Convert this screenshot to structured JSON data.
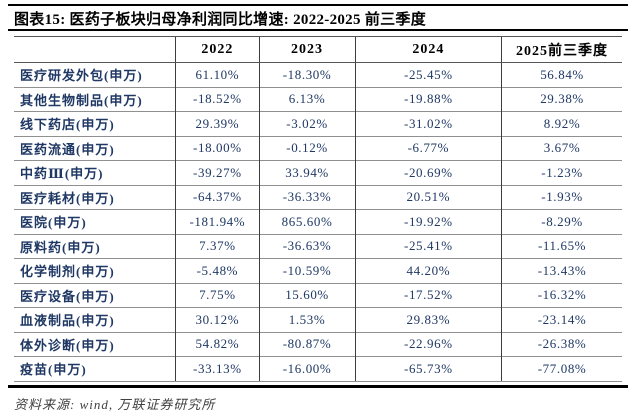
{
  "title": "图表15:  医药子板块归母净利润同比增速:  2022-2025 前三季度",
  "footer": "资料来源: wind, 万联证券研究所",
  "colors": {
    "text_navy": "#1F3864",
    "title_black": "#000000",
    "row_separator_gray": "#909090",
    "column_line_dark": "#3d3d3d",
    "rule_black": "#000000"
  },
  "table": {
    "columns": [
      "",
      "2022",
      "2023",
      "2024",
      "2025前三季度"
    ],
    "rows": [
      {
        "label": "医疗研发外包(申万)",
        "values": [
          "61.10%",
          "-18.30%",
          "-25.45%",
          "56.84%"
        ]
      },
      {
        "label": "其他生物制品(申万)",
        "values": [
          "-18.52%",
          "6.13%",
          "-19.88%",
          "29.38%"
        ]
      },
      {
        "label": "线下药店(申万)",
        "values": [
          "29.39%",
          "-3.02%",
          "-31.02%",
          "8.92%"
        ]
      },
      {
        "label": "医药流通(申万)",
        "values": [
          "-18.00%",
          "-0.12%",
          "-6.77%",
          "3.67%"
        ]
      },
      {
        "label": "中药Ⅲ(申万)",
        "values": [
          "-39.27%",
          "33.94%",
          "-20.69%",
          "-1.23%"
        ]
      },
      {
        "label": "医疗耗材(申万)",
        "values": [
          "-64.37%",
          "-36.33%",
          "20.51%",
          "-1.93%"
        ]
      },
      {
        "label": "医院(申万)",
        "values": [
          "-181.94%",
          "865.60%",
          "-19.92%",
          "-8.29%"
        ]
      },
      {
        "label": "原料药(申万)",
        "values": [
          "7.37%",
          "-36.63%",
          "-25.41%",
          "-11.65%"
        ]
      },
      {
        "label": "化学制剂(申万)",
        "values": [
          "-5.48%",
          "-10.59%",
          "44.20%",
          "-13.43%"
        ]
      },
      {
        "label": "医疗设备(申万)",
        "values": [
          "7.75%",
          "15.60%",
          "-17.52%",
          "-16.32%"
        ]
      },
      {
        "label": "血液制品(申万)",
        "values": [
          "30.12%",
          "1.53%",
          "29.83%",
          "-23.14%"
        ]
      },
      {
        "label": "体外诊断(申万)",
        "values": [
          "54.82%",
          "-80.87%",
          "-22.96%",
          "-26.38%"
        ]
      },
      {
        "label": "疫苗(申万)",
        "values": [
          "-33.13%",
          "-16.00%",
          "-65.73%",
          "-77.08%"
        ]
      }
    ]
  },
  "chart_data": {
    "type": "table",
    "title": "医药子板块归母净利润同比增速: 2022-2025 前三季度",
    "categories": [
      "2022",
      "2023",
      "2024",
      "2025前三季度"
    ],
    "series": [
      {
        "name": "医疗研发外包(申万)",
        "values": [
          61.1,
          -18.3,
          -25.45,
          56.84
        ]
      },
      {
        "name": "其他生物制品(申万)",
        "values": [
          -18.52,
          6.13,
          -19.88,
          29.38
        ]
      },
      {
        "name": "线下药店(申万)",
        "values": [
          29.39,
          -3.02,
          -31.02,
          8.92
        ]
      },
      {
        "name": "医药流通(申万)",
        "values": [
          -18.0,
          -0.12,
          -6.77,
          3.67
        ]
      },
      {
        "name": "中药Ⅲ(申万)",
        "values": [
          -39.27,
          33.94,
          -20.69,
          -1.23
        ]
      },
      {
        "name": "医疗耗材(申万)",
        "values": [
          -64.37,
          -36.33,
          20.51,
          -1.93
        ]
      },
      {
        "name": "医院(申万)",
        "values": [
          -181.94,
          865.6,
          -19.92,
          -8.29
        ]
      },
      {
        "name": "原料药(申万)",
        "values": [
          7.37,
          -36.63,
          -25.41,
          -11.65
        ]
      },
      {
        "name": "化学制剂(申万)",
        "values": [
          -5.48,
          -10.59,
          44.2,
          -13.43
        ]
      },
      {
        "name": "医疗设备(申万)",
        "values": [
          7.75,
          15.6,
          -17.52,
          -16.32
        ]
      },
      {
        "name": "血液制品(申万)",
        "values": [
          30.12,
          1.53,
          29.83,
          -23.14
        ]
      },
      {
        "name": "体外诊断(申万)",
        "values": [
          54.82,
          -80.87,
          -22.96,
          -26.38
        ]
      },
      {
        "name": "疫苗(申万)",
        "values": [
          -33.13,
          -16.0,
          -65.73,
          -77.08
        ]
      }
    ],
    "unit": "%"
  }
}
